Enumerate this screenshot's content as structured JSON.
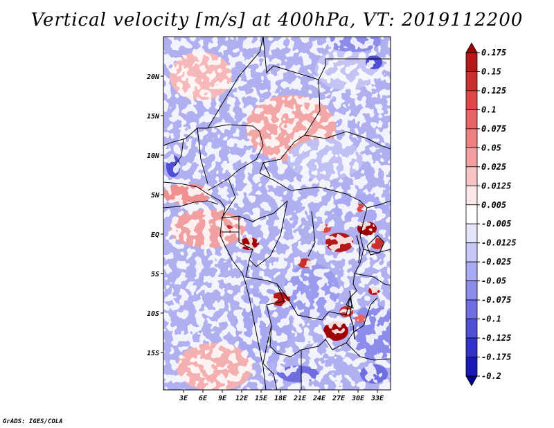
{
  "title": "Vertical velocity [m/s] at 400hPa, VT: 2019112200",
  "footer": "GrADS: IGES/COLA",
  "map": {
    "lat_ticks": [
      "20N",
      "15N",
      "10N",
      "5N",
      "EQ",
      "5S",
      "10S",
      "15S"
    ],
    "lon_ticks": [
      "3E",
      "6E",
      "9E",
      "12E",
      "15E",
      "18E",
      "21E",
      "24E",
      "27E",
      "30E",
      "33E"
    ]
  },
  "colorbar": {
    "levels": [
      "0.175",
      "0.15",
      "0.125",
      "0.1",
      "0.075",
      "0.05",
      "0.025",
      "0.0125",
      "0.005",
      "-0.005",
      "-0.0125",
      "-0.025",
      "-0.05",
      "-0.075",
      "-0.1",
      "-0.125",
      "-0.175",
      "-0.2"
    ],
    "colors": [
      "#a00000",
      "#b41818",
      "#c83030",
      "#dc4848",
      "#e66464",
      "#ee8080",
      "#f4a0a0",
      "#f8c4c4",
      "#fce6e6",
      "#ffffff",
      "#e4e4fc",
      "#c8c8f8",
      "#aaaaf2",
      "#8c8ceb",
      "#6e6ee2",
      "#5050d6",
      "#3232c8",
      "#1818b4",
      "#00008c"
    ]
  }
}
